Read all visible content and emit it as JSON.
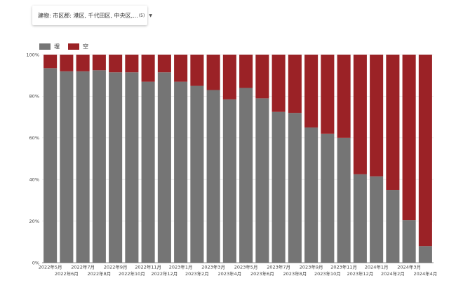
{
  "filter": {
    "label": "建物: 市区郡: 港区, 千代田区, 中央区,...",
    "count": "(5)",
    "caret": "▼"
  },
  "colors": {
    "occupied": "#757575",
    "vacant": "#9b2226",
    "axis": "#444444",
    "grid": "#e0e0e0"
  },
  "chart_data": {
    "type": "bar",
    "stacked": true,
    "categories": [
      "2022年5月",
      "2022年6月",
      "2022年7月",
      "2022年8月",
      "2022年9月",
      "2022年10月",
      "2022年11月",
      "2022年12月",
      "2023年1月",
      "2023年2月",
      "2023年3月",
      "2023年4月",
      "2023年5月",
      "2023年6月",
      "2023年7月",
      "2023年8月",
      "2023年9月",
      "2023年10月",
      "2023年11月",
      "2023年12月",
      "2024年1月",
      "2024年2月",
      "2024年3月",
      "2024年4月"
    ],
    "series": [
      {
        "name": "埋",
        "values": [
          93.5,
          92,
          92,
          92.5,
          91.5,
          91.5,
          87,
          91.5,
          87,
          85,
          83,
          78.5,
          84,
          79,
          72.5,
          72,
          65,
          62,
          60,
          42.5,
          41.5,
          35,
          20.5,
          8
        ]
      },
      {
        "name": "空",
        "values": [
          6.5,
          8,
          8,
          7.5,
          8.5,
          8.5,
          13,
          8.5,
          13,
          15,
          17,
          21.5,
          16,
          21,
          27.5,
          28,
          35,
          38,
          40,
          57.5,
          58.5,
          65,
          79.5,
          92
        ]
      }
    ],
    "ylim": [
      0,
      100
    ],
    "yticks": [
      "0%",
      "20%",
      "40%",
      "60%",
      "80%",
      "100%"
    ],
    "legend_position": "top-left"
  }
}
